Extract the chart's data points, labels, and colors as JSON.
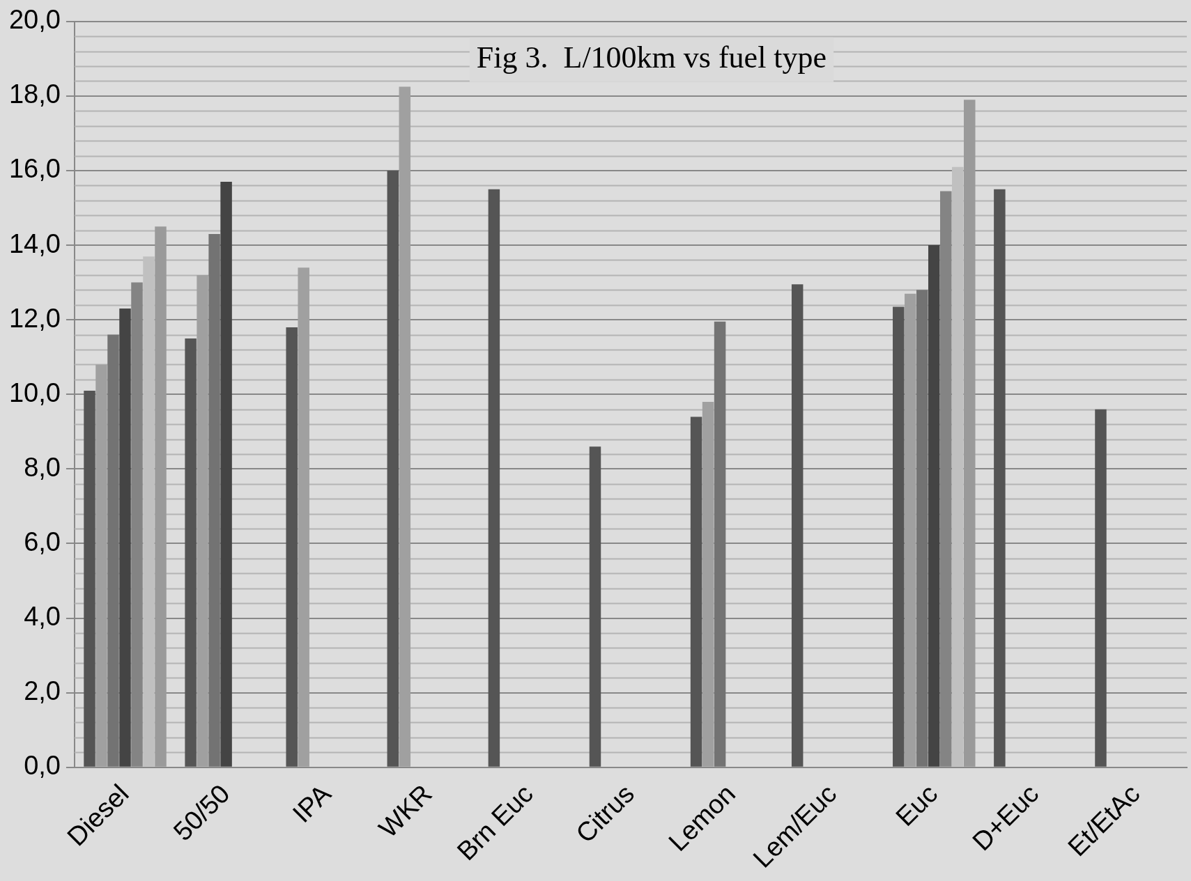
{
  "chart_data": {
    "type": "bar",
    "title": "Fig 3.  L/100km vs fuel type",
    "categories": [
      "Diesel",
      "50/50",
      "IPA",
      "WKR",
      "Brn Euc",
      "Citrus",
      "Lemon",
      "Lem/Euc",
      "Euc",
      "D+Euc",
      "Et/EtAc"
    ],
    "series": [
      {
        "color": "#555555",
        "values": [
          10.1,
          11.5,
          11.8,
          16.0,
          15.5,
          8.6,
          9.4,
          12.95,
          12.35,
          15.5,
          9.6
        ]
      },
      {
        "color": "#a0a0a0",
        "values": [
          10.8,
          13.2,
          13.4,
          18.25,
          null,
          null,
          9.8,
          null,
          12.7,
          null,
          null
        ]
      },
      {
        "color": "#737373",
        "values": [
          11.6,
          14.3,
          null,
          null,
          null,
          null,
          11.95,
          null,
          12.8,
          null,
          null
        ]
      },
      {
        "color": "#444444",
        "values": [
          12.3,
          15.7,
          null,
          null,
          null,
          null,
          null,
          null,
          14.0,
          null,
          null
        ]
      },
      {
        "color": "#848484",
        "values": [
          13.0,
          null,
          null,
          null,
          null,
          null,
          null,
          null,
          15.45,
          null,
          null
        ]
      },
      {
        "color": "#c0c0c0",
        "values": [
          13.7,
          null,
          null,
          null,
          null,
          null,
          null,
          null,
          16.1,
          null,
          null
        ]
      },
      {
        "color": "#9a9a9a",
        "values": [
          14.5,
          null,
          null,
          null,
          null,
          null,
          null,
          null,
          17.9,
          null,
          null
        ]
      }
    ],
    "ylim": [
      0,
      20
    ],
    "yticks": [
      {
        "value": 0,
        "label": "0,0"
      },
      {
        "value": 2,
        "label": "2,0"
      },
      {
        "value": 4,
        "label": "4,0"
      },
      {
        "value": 6,
        "label": "6,0"
      },
      {
        "value": 8,
        "label": "8,0"
      },
      {
        "value": 10,
        "label": "10,0"
      },
      {
        "value": 12,
        "label": "12,0"
      },
      {
        "value": 14,
        "label": "14,0"
      },
      {
        "value": 16,
        "label": "16,0"
      },
      {
        "value": 18,
        "label": "18,0"
      },
      {
        "value": 20,
        "label": "20,0"
      }
    ],
    "grid": "y",
    "legend": false
  }
}
